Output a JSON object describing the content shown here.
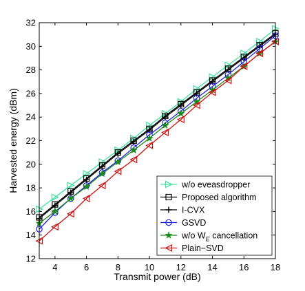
{
  "chart_data": {
    "type": "line",
    "title": "",
    "xlabel": "Transmit power (dB)",
    "ylabel": "Harvested energy (dBm)",
    "xlim": [
      3,
      18
    ],
    "ylim": [
      12,
      32
    ],
    "xticks": [
      4,
      6,
      8,
      10,
      12,
      14,
      16,
      18
    ],
    "yticks": [
      12,
      14,
      16,
      18,
      20,
      22,
      24,
      26,
      28,
      30,
      32
    ],
    "grid": false,
    "legend_position": "bottom-right",
    "x": [
      3,
      4,
      5,
      6,
      7,
      8,
      9,
      10,
      11,
      12,
      13,
      14,
      15,
      16,
      17,
      18
    ],
    "series": [
      {
        "name": "w/o eveasdropper",
        "color": "#40e0a0",
        "marker": "triangle-right",
        "values": [
          16.2,
          17.2,
          18.2,
          19.2,
          20.2,
          21.2,
          22.2,
          23.3,
          24.3,
          25.3,
          26.4,
          27.4,
          28.4,
          29.4,
          30.4,
          31.5
        ]
      },
      {
        "name": "Proposed algorithm",
        "color": "#000000",
        "marker": "square",
        "values": [
          15.5,
          16.6,
          17.7,
          18.8,
          19.9,
          21.0,
          22.0,
          23.0,
          24.1,
          25.1,
          26.1,
          27.1,
          28.1,
          29.1,
          30.1,
          31.1
        ]
      },
      {
        "name": "I-CVX",
        "color": "#000000",
        "marker": "plus",
        "values": [
          15.4,
          16.5,
          17.6,
          18.7,
          19.8,
          20.9,
          21.9,
          22.9,
          24.0,
          25.0,
          26.0,
          27.0,
          28.0,
          29.0,
          30.0,
          31.0
        ]
      },
      {
        "name": "GSVD",
        "color": "#1f1fdf",
        "marker": "circle",
        "values": [
          14.5,
          15.9,
          17.1,
          18.2,
          19.3,
          20.3,
          21.4,
          22.5,
          23.5,
          24.5,
          25.6,
          26.6,
          27.6,
          28.7,
          29.8,
          30.9
        ]
      },
      {
        "name": "w/o W_E cancellation",
        "color": "#1a8a1a",
        "marker": "star",
        "values": [
          15.0,
          16.0,
          17.1,
          18.1,
          19.2,
          20.2,
          21.2,
          22.2,
          23.3,
          24.3,
          25.3,
          26.3,
          27.3,
          28.3,
          29.4,
          30.4
        ]
      },
      {
        "name": "Plain-SVD",
        "color": "#d01010",
        "marker": "triangle-left",
        "values": [
          13.5,
          14.7,
          15.8,
          17.1,
          18.2,
          19.4,
          20.4,
          21.6,
          22.7,
          23.8,
          25.0,
          26.1,
          27.1,
          28.3,
          29.4,
          30.4
        ]
      }
    ],
    "legend_labels": [
      {
        "text": "w/o eveasdropper"
      },
      {
        "text": "Proposed algorithm"
      },
      {
        "text": "I-CVX"
      },
      {
        "text": "GSVD"
      },
      {
        "text": "w/o W",
        "sub": "E",
        "suffix": " cancellation"
      },
      {
        "text": "Plain−SVD"
      }
    ]
  }
}
